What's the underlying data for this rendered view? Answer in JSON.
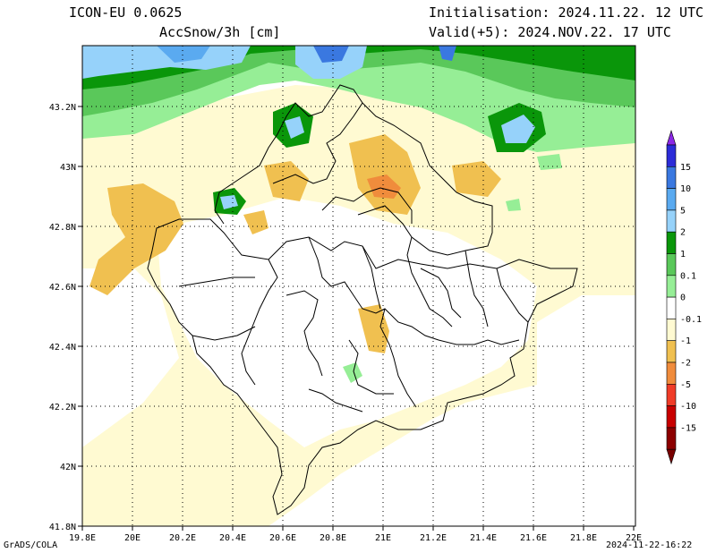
{
  "header": {
    "model": "ICON-EU 0.0625",
    "variable": "AccSnow/3h [cm]",
    "init": "Initialisation: 2024.11.22. 12 UTC",
    "valid": "Valid(+5): 2024.NOV.22. 17 UTC"
  },
  "axes": {
    "lon_ticks": [
      "19.8E",
      "20E",
      "20.2E",
      "20.4E",
      "20.6E",
      "20.8E",
      "21E",
      "21.2E",
      "21.4E",
      "21.6E",
      "21.8E",
      "22E"
    ],
    "lat_ticks": [
      "41.8N",
      "42N",
      "42.2N",
      "42.4N",
      "42.6N",
      "42.8N",
      "43N",
      "43.2N"
    ],
    "lon_range": [
      19.8,
      22.0
    ],
    "lat_range": [
      41.8,
      43.4
    ]
  },
  "colorbar": {
    "levels": [
      "15",
      "10",
      "5",
      "2",
      "1",
      "0.1",
      "0",
      "-0.1",
      "-1",
      "-2",
      "-5",
      "-10",
      "-15"
    ],
    "colors": [
      "#2c2cd8",
      "#3a78e0",
      "#5aaaf0",
      "#96d2fa",
      "#0a960a",
      "#5ac85a",
      "#96ee96",
      "#ffffff",
      "#fffad2",
      "#f0c050",
      "#f08c3c",
      "#f03c28",
      "#c80000",
      "#8c0000"
    ],
    "top_color": "#8c28e6",
    "bottom_color": "#780000"
  },
  "footer": {
    "left": "GrADS/COLA",
    "right": "2024-11-22-16:22"
  }
}
